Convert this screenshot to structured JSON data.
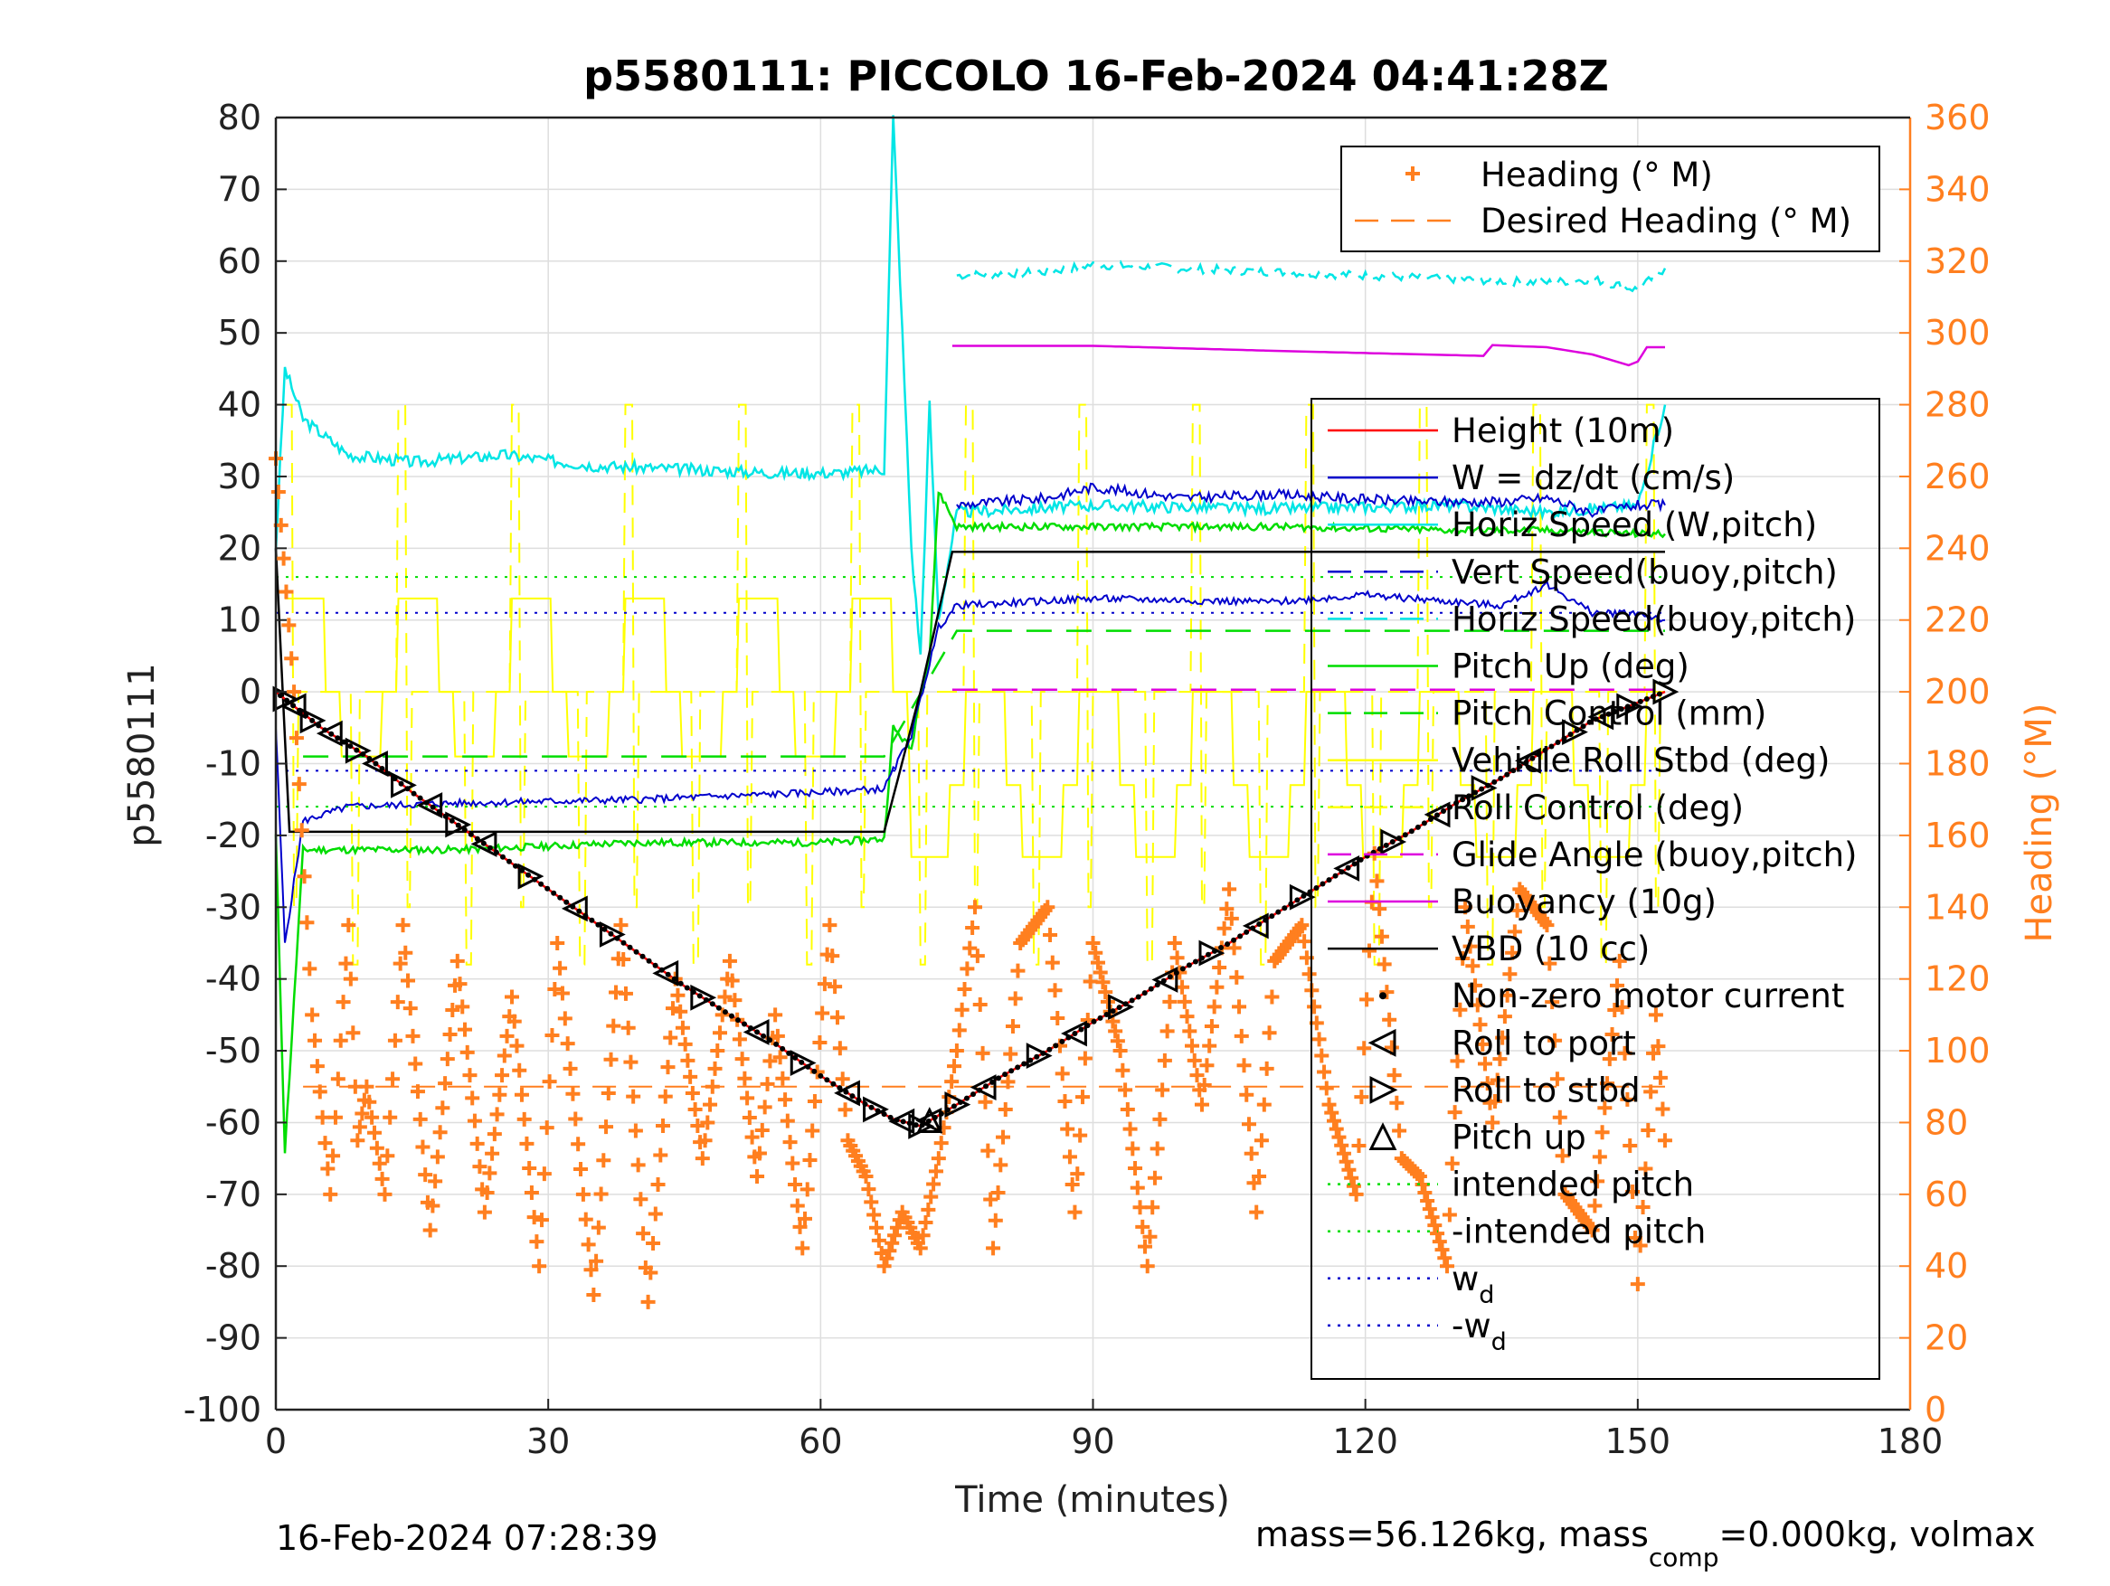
{
  "chart_data": {
    "type": "line",
    "title": "p5580111: PICCOLO 16-Feb-2024 04:41:28Z",
    "xlabel": "Time (minutes)",
    "ylabel": "p5580111",
    "ylabel_right": "Heading (°M)",
    "xlim": [
      0,
      180
    ],
    "ylim": [
      -100,
      80
    ],
    "ylim_right": [
      0,
      360
    ],
    "xticks": [
      "0",
      "30",
      "60",
      "90",
      "120",
      "150",
      "180"
    ],
    "yticks": [
      "-100",
      "-90",
      "-80",
      "-70",
      "-60",
      "-50",
      "-40",
      "-30",
      "-20",
      "-10",
      "0",
      "10",
      "20",
      "30",
      "40",
      "50",
      "60",
      "70",
      "80"
    ],
    "yticks_right": [
      "0",
      "20",
      "40",
      "60",
      "80",
      "100",
      "120",
      "140",
      "160",
      "180",
      "200",
      "220",
      "240",
      "260",
      "280",
      "300",
      "320",
      "340",
      "360"
    ],
    "grid": true,
    "footer_left": "16-Feb-2024 07:28:39",
    "footer_right": "mass=56.126kg, mass",
    "footer_right_sub": "comp",
    "footer_right_tail": "=0.000kg, volmax",
    "heading_legend": {
      "placement": "top-right",
      "entries": [
        "Heading (° M)",
        "Desired Heading (° M)"
      ]
    },
    "main_legend": {
      "placement": "right",
      "entries": [
        {
          "label": "Height (10m)",
          "color": "#ff0000",
          "style": "solid"
        },
        {
          "label": "W = dz/dt (cm/s)",
          "color": "#0000cc",
          "style": "solid"
        },
        {
          "label": "Horiz Speed (W,pitch)",
          "color": "#00e5e5",
          "style": "solid"
        },
        {
          "label": "Vert Speed(buoy,pitch)",
          "color": "#0000cc",
          "style": "dashed"
        },
        {
          "label": "Horiz Speed(buoy,pitch)",
          "color": "#00e5e5",
          "style": "dashed"
        },
        {
          "label": "Pitch Up (deg)",
          "color": "#00dd00",
          "style": "solid"
        },
        {
          "label": "Pitch Control (mm)",
          "color": "#00dd00",
          "style": "dashed"
        },
        {
          "label": "Vehicle Roll Stbd (deg)",
          "color": "#ffff00",
          "style": "solid"
        },
        {
          "label": "Roll Control (deg)",
          "color": "#ffff00",
          "style": "dashed"
        },
        {
          "label": "Glide Angle (buoy,pitch)",
          "color": "#dd00dd",
          "style": "dashed"
        },
        {
          "label": "Buoyancy (10g)",
          "color": "#dd00dd",
          "style": "solid"
        },
        {
          "label": "VBD (10 cc)",
          "color": "#000000",
          "style": "solid"
        },
        {
          "label": "Non-zero motor current",
          "color": "#000000",
          "style": "dot"
        },
        {
          "label": "Roll to port",
          "color": "#000000",
          "style": "tri-left"
        },
        {
          "label": "Roll to stbd",
          "color": "#000000",
          "style": "tri-right"
        },
        {
          "label": "Pitch up",
          "color": "#000000",
          "style": "tri-up"
        },
        {
          "label": "intended pitch",
          "color": "#00dd00",
          "style": "dotted"
        },
        {
          "label": "-intended pitch",
          "color": "#00dd00",
          "style": "dotted"
        },
        {
          "label": "w",
          "sub": "d",
          "color": "#0000cc",
          "style": "dotted"
        },
        {
          "label": "-w",
          "sub": "d",
          "color": "#0000cc",
          "style": "dotted"
        }
      ]
    },
    "colors": {
      "heading": "#ff7f1f",
      "height": "#ff0000",
      "w": "#0000cc",
      "horiz": "#00e5e5",
      "pitch": "#00dd00",
      "roll": "#ffff00",
      "buoy": "#dd00dd",
      "vbd": "#000000",
      "grid": "#dedede"
    },
    "series": {
      "height": {
        "x": [
          0,
          5,
          10,
          15,
          20,
          25,
          30,
          35,
          40,
          45,
          50,
          55,
          60,
          65,
          68,
          71,
          75,
          80,
          85,
          90,
          95,
          100,
          105,
          110,
          115,
          120,
          125,
          130,
          135,
          140,
          145,
          150,
          153
        ],
        "y": [
          0,
          -5,
          -9,
          -14,
          -18.5,
          -23,
          -27.5,
          -32,
          -36.5,
          -41,
          -45,
          -49,
          -53.5,
          -57.5,
          -59.5,
          -60.5,
          -57.5,
          -53.5,
          -50,
          -46,
          -42.5,
          -38.5,
          -35,
          -31,
          -27,
          -23,
          -19.5,
          -15.5,
          -12,
          -8,
          -4,
          -1.5,
          0
        ]
      },
      "vbd": {
        "x": [
          0,
          1.5,
          67,
          71,
          74.5,
          153
        ],
        "y": [
          20,
          -19.5,
          -19.5,
          0,
          19.5,
          19.5
        ]
      },
      "w": {
        "x": [
          0,
          1,
          3,
          8,
          20,
          40,
          60,
          67,
          70,
          73,
          75,
          90,
          110,
          120,
          135,
          140,
          145,
          150,
          153
        ],
        "y": [
          -5,
          -35,
          -18,
          -16,
          -15.5,
          -15,
          -14,
          -13.5,
          -6,
          9,
          12,
          13,
          12.5,
          13.5,
          12,
          15,
          11,
          11,
          10
        ]
      },
      "w_up": {
        "x": [
          75,
          85,
          90,
          100,
          110,
          125,
          135,
          140,
          145,
          150,
          153
        ],
        "y": [
          26,
          27,
          28.5,
          27,
          27.5,
          26.5,
          26.5,
          27,
          25,
          26,
          26
        ]
      },
      "horiz": {
        "x": [
          0,
          1,
          3,
          8,
          15,
          25,
          35,
          45,
          55,
          62,
          67,
          68,
          69,
          70,
          71,
          72,
          73,
          75,
          90,
          110,
          130,
          140,
          150,
          153
        ],
        "y": [
          20,
          45,
          38,
          33,
          32,
          33,
          31.5,
          31,
          30.5,
          30.5,
          31,
          80,
          50,
          20,
          5,
          40,
          10,
          25,
          26,
          25.5,
          26,
          25,
          26,
          40
        ]
      },
      "horiz_dash": {
        "x": [
          75,
          85,
          90,
          100,
          110,
          120,
          130,
          140,
          145,
          150,
          153
        ],
        "y": [
          58,
          58.5,
          59.5,
          59,
          58.5,
          58,
          57.5,
          57,
          57.5,
          56,
          59
        ]
      },
      "pitch": {
        "x": [
          0,
          1,
          3,
          8,
          20,
          40,
          60,
          67,
          68,
          70,
          71,
          72,
          73,
          75,
          90,
          110,
          130,
          140,
          150,
          153
        ],
        "y": [
          -20,
          -64,
          -22,
          -22,
          -22,
          -21,
          -21,
          -20.5,
          -5,
          -8,
          0,
          5,
          28,
          23,
          23,
          23,
          22.5,
          22.5,
          22,
          22
        ]
      },
      "pitch_ctrl": {
        "x": [
          3,
          67,
          75,
          153
        ],
        "y": [
          -9,
          -9,
          8.5,
          8.5
        ]
      },
      "buoy": {
        "x": [
          74.5,
          90,
          110,
          133,
          134,
          140,
          145,
          149,
          150,
          151,
          153
        ],
        "y": [
          48.2,
          48.2,
          47.5,
          46.8,
          48.3,
          48,
          47,
          45.5,
          46,
          48,
          48
        ]
      },
      "glide": {
        "x": [
          74.5,
          153
        ],
        "y": [
          0.3,
          0.3
        ]
      },
      "intended_pitch": 16,
      "w_d": 11,
      "desired_heading": 90,
      "heading": {
        "x": [
          0,
          2,
          4,
          6,
          8,
          9,
          10,
          12,
          14,
          17,
          20,
          23,
          26,
          29,
          31,
          35,
          38,
          41,
          44,
          47,
          50,
          53,
          55,
          58,
          61,
          63,
          65,
          67,
          69,
          71,
          73,
          75,
          77,
          79,
          82,
          85,
          88,
          90,
          93,
          96,
          99,
          102,
          105,
          108,
          110,
          113,
          116,
          119,
          121,
          124,
          126,
          129,
          131,
          134,
          137,
          140,
          142,
          145,
          148,
          150,
          152,
          153
        ],
        "y": [
          265,
          200,
          110,
          60,
          135,
          75,
          90,
          60,
          135,
          50,
          125,
          55,
          115,
          40,
          130,
          32,
          135,
          30,
          120,
          70,
          125,
          65,
          110,
          45,
          135,
          75,
          65,
          40,
          55,
          45,
          70,
          100,
          140,
          45,
          130,
          140,
          55,
          130,
          100,
          40,
          130,
          85,
          145,
          55,
          125,
          135,
          85,
          60,
          155,
          70,
          65,
          40,
          140,
          80,
          145,
          135,
          60,
          50,
          125,
          35,
          110,
          75
        ]
      },
      "roll_period": 12.5,
      "roll_low": -10,
      "roll_mid": 0,
      "roll_high": 13
    },
    "markers": {
      "roll_port_x": [
        2,
        6,
        11,
        17,
        23,
        33,
        43,
        53,
        63,
        69,
        72,
        78,
        88,
        98,
        108,
        118,
        128,
        138,
        146
      ],
      "roll_stbd_x": [
        1,
        4,
        9,
        14,
        20,
        28,
        37,
        47,
        58,
        66,
        71,
        75,
        84,
        93,
        103,
        113,
        123,
        133,
        143,
        149,
        153
      ],
      "pitch_up_x": [
        72
      ]
    }
  }
}
